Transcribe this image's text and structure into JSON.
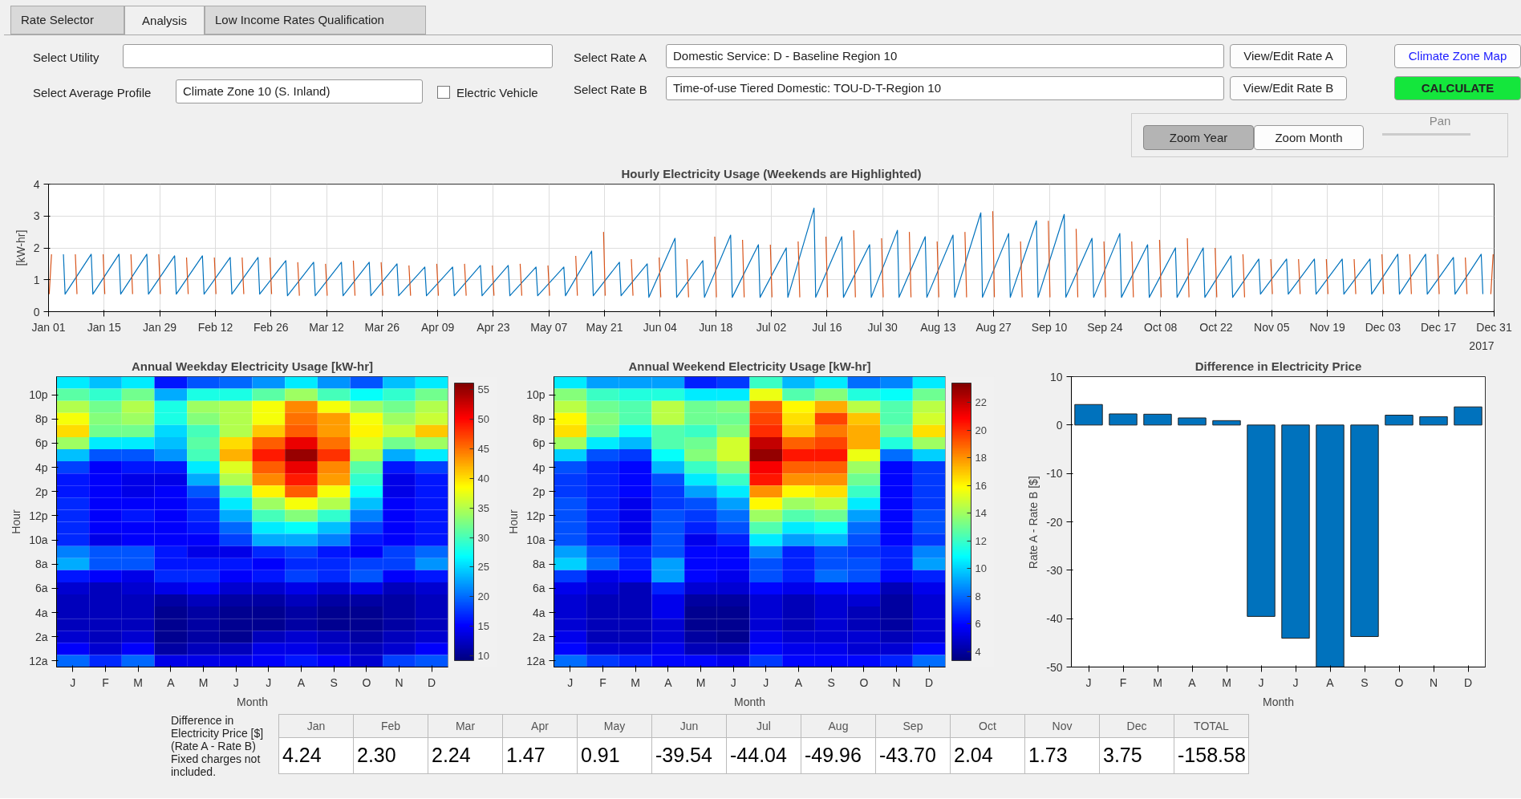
{
  "chart_data": [
    {
      "type": "other",
      "annotations": [
        "Rate Selector",
        "Analysis",
        "Low Income Rates Qualification",
        "Select Utility",
        "Select Average Profile",
        "Climate Zone 10 (S. Inland)",
        "Electric Vehicle",
        "Select Rate A",
        "Domestic Service: D - Baseline Region 10",
        "Select Rate B",
        "Time-of-use Tiered Domestic: TOU-D-T-Region 10",
        "View/Edit Rate A",
        "View/Edit Rate B",
        "Climate Zone Map",
        "CALCULATE",
        "Zoom Year",
        "Zoom Month",
        "Pan"
      ]
    },
    {
      "type": "line",
      "title": "Hourly Electricity Usage (Weekends are Highlighted)",
      "ylabel": "[kW-hr]",
      "xlim": [
        "2017-01-01",
        "2017-12-31"
      ],
      "ylim": [
        0,
        4
      ],
      "yticks": [
        0,
        1,
        2,
        3,
        4
      ],
      "grid": true,
      "xticks": [
        {
          "value": "2017-01-01",
          "label": "Jan 01"
        },
        {
          "value": "2017-01-15",
          "label": "Jan 15"
        },
        {
          "value": "2017-01-29",
          "label": "Jan 29"
        },
        {
          "value": "2017-02-12",
          "label": "Feb 12"
        },
        {
          "value": "2017-02-26",
          "label": "Feb 26"
        },
        {
          "value": "2017-03-12",
          "label": "Mar 12"
        },
        {
          "value": "2017-03-26",
          "label": "Mar 26"
        },
        {
          "value": "2017-04-09",
          "label": "Apr 09"
        },
        {
          "value": "2017-04-23",
          "label": "Apr 23"
        },
        {
          "value": "2017-05-07",
          "label": "May 07"
        },
        {
          "value": "2017-05-21",
          "label": "May 21"
        },
        {
          "value": "2017-06-04",
          "label": "Jun 04"
        },
        {
          "value": "2017-06-18",
          "label": "Jun 18"
        },
        {
          "value": "2017-07-02",
          "label": "Jul 02"
        },
        {
          "value": "2017-07-16",
          "label": "Jul 16"
        },
        {
          "value": "2017-07-30",
          "label": "Jul 30"
        },
        {
          "value": "2017-08-13",
          "label": "Aug 13"
        },
        {
          "value": "2017-08-27",
          "label": "Aug 27"
        },
        {
          "value": "2017-09-10",
          "label": "Sep 10"
        },
        {
          "value": "2017-09-24",
          "label": "Sep 24"
        },
        {
          "value": "2017-10-08",
          "label": "Oct 08"
        },
        {
          "value": "2017-10-22",
          "label": "Oct 22"
        },
        {
          "value": "2017-11-05",
          "label": "Nov 05"
        },
        {
          "value": "2017-11-19",
          "label": "Nov 19"
        },
        {
          "value": "2017-12-03",
          "label": "Dec 03"
        },
        {
          "value": "2017-12-17",
          "label": "Dec 17"
        },
        {
          "value": "2017-12-31",
          "label": "Dec 31"
        }
      ],
      "annotations": [
        "2017"
      ],
      "series": [
        {
          "color": "#0072bd",
          "x": [
            "2017-01-04T18:00",
            "2017-01-05T04:00",
            "2017-01-11T18:00",
            "2017-01-12T04:00",
            "2017-01-18T18:00",
            "2017-01-19T04:00",
            "2017-01-25T18:00",
            "2017-01-26T04:00",
            "2017-02-01T18:00",
            "2017-02-02T04:00",
            "2017-02-08T18:00",
            "2017-02-09T04:00",
            "2017-02-15T18:00",
            "2017-02-16T04:00",
            "2017-02-22T18:00",
            "2017-02-23T04:00",
            "2017-03-01T18:00",
            "2017-03-02T04:00",
            "2017-03-08T18:00",
            "2017-03-09T04:00",
            "2017-03-15T18:00",
            "2017-03-16T04:00",
            "2017-03-22T18:00",
            "2017-03-23T04:00",
            "2017-03-29T18:00",
            "2017-03-30T04:00",
            "2017-04-05T18:00",
            "2017-04-06T04:00",
            "2017-04-12T18:00",
            "2017-04-13T04:00",
            "2017-04-19T18:00",
            "2017-04-20T04:00",
            "2017-04-26T18:00",
            "2017-04-27T04:00",
            "2017-05-03T18:00",
            "2017-05-04T04:00",
            "2017-05-10T18:00",
            "2017-05-11T04:00",
            "2017-05-17T18:00",
            "2017-05-18T04:00",
            "2017-05-24T18:00",
            "2017-05-25T04:00",
            "2017-05-31T18:00",
            "2017-06-01T04:00",
            "2017-06-07T18:00",
            "2017-06-08T04:00",
            "2017-06-14T18:00",
            "2017-06-15T04:00",
            "2017-06-21T18:00",
            "2017-06-22T04:00",
            "2017-06-28T18:00",
            "2017-06-29T04:00",
            "2017-07-05T18:00",
            "2017-07-06T04:00",
            "2017-07-12T18:00",
            "2017-07-13T04:00",
            "2017-07-19T18:00",
            "2017-07-20T04:00",
            "2017-07-26T18:00",
            "2017-07-27T04:00",
            "2017-08-02T18:00",
            "2017-08-03T04:00",
            "2017-08-09T18:00",
            "2017-08-10T04:00",
            "2017-08-16T18:00",
            "2017-08-17T04:00",
            "2017-08-23T18:00",
            "2017-08-24T04:00",
            "2017-08-30T18:00",
            "2017-08-31T04:00",
            "2017-09-06T18:00",
            "2017-09-07T04:00",
            "2017-09-13T18:00",
            "2017-09-14T04:00",
            "2017-09-20T18:00",
            "2017-09-21T04:00",
            "2017-09-27T18:00",
            "2017-09-28T04:00",
            "2017-10-04T18:00",
            "2017-10-05T04:00",
            "2017-10-11T18:00",
            "2017-10-12T04:00",
            "2017-10-18T18:00",
            "2017-10-19T04:00",
            "2017-10-25T18:00",
            "2017-10-26T04:00",
            "2017-11-01T18:00",
            "2017-11-02T04:00",
            "2017-11-08T18:00",
            "2017-11-09T04:00",
            "2017-11-15T18:00",
            "2017-11-16T04:00",
            "2017-11-22T18:00",
            "2017-11-23T04:00",
            "2017-11-29T18:00",
            "2017-11-30T04:00",
            "2017-12-06T18:00",
            "2017-12-07T04:00",
            "2017-12-13T18:00",
            "2017-12-14T04:00",
            "2017-12-20T18:00",
            "2017-12-21T04:00",
            "2017-12-27T18:00",
            "2017-12-28T04:00"
          ],
          "values": [
            1.8,
            0.55,
            1.8,
            0.55,
            1.8,
            0.55,
            1.8,
            0.55,
            1.75,
            0.55,
            1.75,
            0.55,
            1.7,
            0.55,
            1.7,
            0.55,
            1.6,
            0.5,
            1.55,
            0.5,
            1.55,
            0.5,
            1.55,
            0.5,
            1.5,
            0.5,
            1.4,
            0.5,
            1.4,
            0.5,
            1.45,
            0.5,
            1.45,
            0.5,
            1.4,
            0.5,
            1.4,
            0.5,
            1.9,
            0.5,
            1.55,
            0.5,
            1.5,
            0.45,
            2.3,
            0.45,
            1.6,
            0.45,
            2.4,
            0.45,
            2.1,
            0.45,
            2.0,
            0.45,
            3.25,
            0.45,
            2.35,
            0.45,
            2.1,
            0.45,
            2.55,
            0.45,
            2.35,
            0.45,
            2.4,
            0.45,
            3.1,
            0.45,
            2.45,
            0.45,
            2.85,
            0.45,
            3.05,
            0.45,
            2.3,
            0.45,
            2.45,
            0.45,
            2.1,
            0.45,
            2.0,
            0.45,
            2.0,
            0.45,
            1.75,
            0.45,
            1.65,
            0.55,
            1.65,
            0.55,
            1.65,
            0.55,
            1.65,
            0.55,
            1.65,
            0.55,
            1.8,
            0.55,
            1.8,
            0.55,
            1.7,
            0.55,
            1.8,
            0.55
          ]
        },
        {
          "color": "#d95319",
          "x": [
            "2017-01-01T04:00",
            "2017-01-01T18:00",
            "2017-01-01T22:00",
            "2017-01-07T18:00",
            "2017-01-08T04:00",
            "2017-01-08T12:00",
            "2017-01-14T18:00",
            "2017-01-15T04:00",
            "2017-01-15T12:00",
            "2017-01-21T18:00",
            "2017-01-22T04:00",
            "2017-01-22T12:00",
            "2017-01-28T18:00",
            "2017-01-29T04:00",
            "2017-01-29T12:00",
            "2017-02-04T18:00",
            "2017-02-05T04:00",
            "2017-02-05T12:00",
            "2017-02-11T18:00",
            "2017-02-12T04:00",
            "2017-02-12T12:00",
            "2017-02-18T18:00",
            "2017-02-19T04:00",
            "2017-02-19T12:00",
            "2017-02-25T18:00",
            "2017-02-26T04:00",
            "2017-02-26T12:00",
            "2017-03-04T18:00",
            "2017-03-05T04:00",
            "2017-03-05T12:00",
            "2017-03-11T18:00",
            "2017-03-12T04:00",
            "2017-03-12T12:00",
            "2017-03-18T18:00",
            "2017-03-19T04:00",
            "2017-03-19T12:00",
            "2017-03-25T18:00",
            "2017-03-26T04:00",
            "2017-03-26T12:00",
            "2017-04-01T18:00",
            "2017-04-02T04:00",
            "2017-04-02T12:00",
            "2017-04-08T18:00",
            "2017-04-09T04:00",
            "2017-04-09T12:00",
            "2017-04-15T18:00",
            "2017-04-16T04:00",
            "2017-04-16T12:00",
            "2017-04-22T18:00",
            "2017-04-23T04:00",
            "2017-04-23T12:00",
            "2017-04-29T18:00",
            "2017-04-30T04:00",
            "2017-04-30T12:00",
            "2017-05-06T18:00",
            "2017-05-07T04:00",
            "2017-05-07T12:00",
            "2017-05-13T18:00",
            "2017-05-14T04:00",
            "2017-05-14T12:00",
            "2017-05-20T18:00",
            "2017-05-21T04:00",
            "2017-05-21T12:00",
            "2017-05-27T18:00",
            "2017-05-28T04:00",
            "2017-05-28T12:00",
            "2017-06-03T18:00",
            "2017-06-04T04:00",
            "2017-06-04T12:00",
            "2017-06-10T18:00",
            "2017-06-11T04:00",
            "2017-06-11T12:00",
            "2017-06-17T18:00",
            "2017-06-18T04:00",
            "2017-06-18T12:00",
            "2017-06-24T18:00",
            "2017-06-25T04:00",
            "2017-06-25T12:00",
            "2017-07-01T18:00",
            "2017-07-02T04:00",
            "2017-07-02T12:00",
            "2017-07-08T18:00",
            "2017-07-09T04:00",
            "2017-07-09T12:00",
            "2017-07-15T18:00",
            "2017-07-16T04:00",
            "2017-07-16T12:00",
            "2017-07-22T18:00",
            "2017-07-23T04:00",
            "2017-07-23T12:00",
            "2017-07-29T18:00",
            "2017-07-30T04:00",
            "2017-07-30T12:00",
            "2017-08-05T18:00",
            "2017-08-06T04:00",
            "2017-08-06T12:00",
            "2017-08-12T18:00",
            "2017-08-13T04:00",
            "2017-08-13T12:00",
            "2017-08-19T18:00",
            "2017-08-20T04:00",
            "2017-08-20T12:00",
            "2017-08-26T18:00",
            "2017-08-27T04:00",
            "2017-08-27T12:00",
            "2017-09-02T18:00",
            "2017-09-03T04:00",
            "2017-09-03T12:00",
            "2017-09-09T18:00",
            "2017-09-10T04:00",
            "2017-09-10T12:00",
            "2017-09-16T18:00",
            "2017-09-17T04:00",
            "2017-09-17T12:00",
            "2017-09-23T18:00",
            "2017-09-24T04:00",
            "2017-09-24T12:00",
            "2017-09-30T18:00",
            "2017-10-01T04:00",
            "2017-10-01T12:00",
            "2017-10-07T18:00",
            "2017-10-08T04:00",
            "2017-10-08T12:00",
            "2017-10-14T18:00",
            "2017-10-15T04:00",
            "2017-10-15T12:00",
            "2017-10-21T18:00",
            "2017-10-22T04:00",
            "2017-10-22T12:00",
            "2017-10-28T18:00",
            "2017-10-29T04:00",
            "2017-10-29T12:00",
            "2017-11-04T18:00",
            "2017-11-05T04:00",
            "2017-11-05T12:00",
            "2017-11-11T18:00",
            "2017-11-12T04:00",
            "2017-11-12T12:00",
            "2017-11-18T18:00",
            "2017-11-19T04:00",
            "2017-11-19T12:00",
            "2017-11-25T18:00",
            "2017-11-26T04:00",
            "2017-11-26T12:00",
            "2017-12-02T18:00",
            "2017-12-03T04:00",
            "2017-12-03T12:00",
            "2017-12-09T18:00",
            "2017-12-10T04:00",
            "2017-12-10T12:00",
            "2017-12-16T18:00",
            "2017-12-17T04:00",
            "2017-12-17T12:00",
            "2017-12-23T18:00",
            "2017-12-24T04:00",
            "2017-12-24T12:00",
            "2017-12-30T04:00",
            "2017-12-30T18:00"
          ],
          "values": [
            0.55,
            1.8,
            null,
            1.8,
            0.55,
            null,
            1.8,
            0.55,
            null,
            1.8,
            0.55,
            null,
            1.8,
            0.55,
            null,
            1.7,
            0.55,
            null,
            1.7,
            0.55,
            null,
            1.7,
            0.55,
            null,
            1.7,
            0.55,
            null,
            1.55,
            0.5,
            null,
            1.5,
            0.5,
            null,
            1.6,
            0.5,
            null,
            1.55,
            0.5,
            null,
            1.45,
            0.5,
            null,
            1.5,
            0.5,
            null,
            1.5,
            0.5,
            null,
            1.45,
            0.5,
            null,
            1.5,
            0.5,
            null,
            1.45,
            0.5,
            null,
            1.75,
            0.5,
            null,
            2.5,
            0.5,
            null,
            1.65,
            0.5,
            null,
            1.7,
            0.45,
            null,
            1.65,
            0.45,
            null,
            2.35,
            0.45,
            null,
            2.25,
            0.45,
            null,
            2.1,
            0.45,
            null,
            2.2,
            0.45,
            null,
            2.35,
            0.45,
            null,
            2.55,
            0.45,
            null,
            2.3,
            0.45,
            null,
            2.5,
            0.45,
            null,
            2.2,
            0.45,
            null,
            2.5,
            0.45,
            null,
            3.15,
            0.45,
            null,
            2.2,
            0.45,
            null,
            2.85,
            0.45,
            null,
            2.6,
            0.45,
            null,
            2.2,
            0.45,
            null,
            2.2,
            0.45,
            null,
            2.25,
            0.45,
            null,
            2.3,
            0.45,
            null,
            2.0,
            0.45,
            null,
            1.8,
            0.45,
            null,
            1.65,
            0.55,
            null,
            1.65,
            0.55,
            null,
            1.65,
            0.55,
            null,
            1.65,
            0.55,
            null,
            1.8,
            0.55,
            null,
            1.8,
            0.55,
            null,
            1.8,
            0.55,
            null,
            1.7,
            0.55,
            null,
            0.55,
            1.8
          ]
        }
      ]
    },
    {
      "type": "heatmap",
      "title": "Annual Weekday Electricity Usage [kW-hr]",
      "xlabel": "Month",
      "ylabel": "Hour",
      "clim": [
        9.2,
        56.1
      ],
      "cticks": [
        10,
        15,
        20,
        25,
        30,
        35,
        40,
        45,
        50,
        55
      ],
      "categories": [
        "J",
        "F",
        "M",
        "A",
        "M",
        "J",
        "J",
        "A",
        "S",
        "O",
        "N",
        "D"
      ],
      "y_categories": [
        null,
        "10p",
        null,
        "8p",
        null,
        "6p",
        null,
        "4p",
        null,
        "2p",
        null,
        "12p",
        null,
        "10a",
        null,
        "8a",
        null,
        "6a",
        null,
        "4a",
        null,
        "2a",
        null,
        "12a"
      ],
      "cells": [
        [
          26,
          24,
          26,
          16,
          19,
          20,
          22,
          26,
          22,
          19,
          24,
          26
        ],
        [
          31,
          29,
          32,
          23,
          28,
          28,
          31,
          34,
          30,
          27,
          29,
          32
        ],
        [
          35,
          32,
          35,
          28,
          34,
          35,
          38,
          44,
          38,
          34,
          32,
          35
        ],
        [
          38,
          33,
          34,
          28,
          33,
          35,
          38,
          45,
          43,
          38,
          34,
          36
        ],
        [
          40,
          32,
          32,
          25,
          30,
          35,
          41,
          46,
          43,
          39,
          36,
          41
        ],
        [
          34,
          26,
          26,
          24,
          31,
          40,
          46,
          51,
          45,
          37,
          32,
          34
        ],
        [
          24,
          19,
          19,
          22,
          30,
          42,
          49,
          55,
          48,
          35,
          23,
          26
        ],
        [
          18,
          15,
          16,
          16,
          26,
          37,
          46,
          51,
          44,
          31,
          16,
          18
        ],
        [
          16,
          15,
          14,
          14,
          23,
          35,
          44,
          49,
          43,
          29,
          14,
          16
        ],
        [
          16,
          15,
          14,
          15,
          19,
          30,
          39,
          46,
          38,
          27,
          14,
          16
        ],
        [
          17,
          15,
          15,
          15,
          17,
          26,
          34,
          38,
          35,
          24,
          15,
          16
        ],
        [
          17,
          15,
          16,
          15,
          17,
          23,
          30,
          33,
          29,
          21,
          15,
          16
        ],
        [
          17,
          15,
          15,
          15,
          16,
          20,
          26,
          27,
          24,
          18,
          15,
          16
        ],
        [
          17,
          14,
          15,
          15,
          15,
          18,
          23,
          23,
          21,
          16,
          15,
          16
        ],
        [
          21,
          19,
          19,
          16,
          14,
          14,
          17,
          18,
          16,
          15,
          18,
          20
        ],
        [
          23,
          19,
          19,
          16,
          16,
          16,
          15,
          17,
          17,
          18,
          18,
          22
        ],
        [
          16,
          15,
          14,
          17,
          17,
          15,
          16,
          18,
          17,
          19,
          15,
          16
        ],
        [
          13,
          12,
          13,
          14,
          15,
          13,
          13,
          14,
          13,
          14,
          12,
          13
        ],
        [
          12,
          12,
          12,
          11,
          12,
          11,
          11,
          12,
          11,
          11,
          11,
          12
        ],
        [
          12,
          12,
          12,
          10,
          11,
          10,
          10,
          11,
          10,
          10,
          11,
          12
        ],
        [
          12,
          12,
          12,
          10,
          11,
          10,
          10,
          11,
          10,
          10,
          11,
          12
        ],
        [
          13,
          12,
          13,
          10,
          11,
          10,
          12,
          13,
          12,
          11,
          12,
          13
        ],
        [
          15,
          13,
          15,
          11,
          12,
          12,
          14,
          14,
          13,
          12,
          13,
          15
        ],
        [
          20,
          17,
          20,
          14,
          14,
          14,
          15,
          16,
          15,
          13,
          18,
          19
        ]
      ]
    },
    {
      "type": "heatmap",
      "title": "Annual Weekend Electricity Usage [kW-hr]",
      "xlabel": "Month",
      "ylabel": "Hour",
      "clim": [
        3.35,
        23.4
      ],
      "cticks": [
        4,
        6,
        8,
        10,
        12,
        14,
        16,
        18,
        20,
        22
      ],
      "categories": [
        "J",
        "F",
        "M",
        "A",
        "M",
        "J",
        "J",
        "A",
        "S",
        "O",
        "N",
        "D"
      ],
      "y_categories": [
        null,
        "10p",
        null,
        "8p",
        null,
        "6p",
        null,
        "4p",
        null,
        "2p",
        null,
        "12p",
        null,
        "10a",
        null,
        "8a",
        null,
        "6a",
        null,
        "4a",
        null,
        "2a",
        null,
        "12a"
      ],
      "cells": [
        [
          10.5,
          9,
          9,
          9,
          6.5,
          7,
          12,
          9.5,
          10.5,
          8,
          8.5,
          10.5
        ],
        [
          13.5,
          12,
          11.5,
          11.5,
          10.5,
          10.5,
          15.5,
          12.5,
          13.5,
          11.5,
          11,
          13
        ],
        [
          14.5,
          13,
          12.5,
          14.5,
          13,
          13.5,
          19,
          16,
          17.5,
          14.5,
          12.5,
          14.5
        ],
        [
          16,
          13.5,
          12.5,
          14.5,
          13,
          13,
          19.5,
          16.5,
          19.5,
          17,
          12.5,
          15
        ],
        [
          16.5,
          13,
          11,
          12.5,
          12,
          13.5,
          20,
          17,
          18.5,
          17.5,
          13,
          16.5
        ],
        [
          14,
          10.5,
          9.5,
          12.5,
          13,
          15,
          22,
          19,
          19.5,
          17.5,
          11.5,
          14
        ],
        [
          10,
          7.5,
          7,
          11,
          13.5,
          15,
          23,
          20.5,
          20.5,
          15.5,
          8,
          10
        ],
        [
          7.5,
          6.5,
          6,
          9.5,
          12,
          13.5,
          21,
          19,
          19,
          14,
          6,
          7
        ],
        [
          7,
          6.5,
          6,
          7.5,
          10.5,
          12,
          20.5,
          18,
          18,
          13,
          6,
          7
        ],
        [
          7,
          6.5,
          6,
          7,
          9,
          10.5,
          18,
          16,
          16.5,
          12,
          6,
          7
        ],
        [
          7.5,
          6.5,
          5.5,
          7,
          7.5,
          9,
          16,
          14,
          14.5,
          10.5,
          6,
          7
        ],
        [
          7.5,
          6.5,
          5.5,
          7.5,
          7,
          8,
          14,
          12.5,
          13,
          9,
          6,
          7.5
        ],
        [
          7.5,
          6.5,
          5.5,
          7.5,
          6.5,
          7.5,
          12.5,
          10.5,
          11,
          8,
          6,
          7.5
        ],
        [
          7.5,
          6.5,
          5.5,
          7.5,
          5.5,
          6.5,
          10.5,
          9,
          9.5,
          7.5,
          6,
          7
        ],
        [
          9,
          7.5,
          6.5,
          7.5,
          6,
          6,
          8.5,
          6.5,
          7.5,
          7,
          6.5,
          8.5
        ],
        [
          10,
          8,
          6.5,
          9,
          6,
          6,
          7.5,
          6.5,
          7.5,
          7.5,
          6.5,
          9
        ],
        [
          7,
          5.5,
          6,
          9,
          6,
          5.5,
          7.5,
          6.5,
          8,
          7.5,
          6,
          6.5
        ],
        [
          5.5,
          5,
          4.5,
          6.5,
          5,
          5,
          6,
          5.5,
          6,
          6,
          4.5,
          5.5
        ],
        [
          5,
          4.5,
          4.5,
          5.5,
          4,
          4,
          5,
          4.5,
          5,
          5,
          4,
          5
        ],
        [
          5,
          4.5,
          4.5,
          5.5,
          3.7,
          3.7,
          5,
          4.5,
          5,
          4.5,
          4,
          5
        ],
        [
          5,
          4.5,
          4.5,
          5,
          3.7,
          3.7,
          5,
          4.5,
          5,
          4.5,
          4,
          5
        ],
        [
          5.5,
          4.5,
          4.5,
          5,
          4,
          3.7,
          5.5,
          5,
          5,
          5,
          4.5,
          5
        ],
        [
          6,
          5,
          5,
          5.5,
          4.5,
          4.5,
          6,
          5.5,
          5.5,
          5,
          5,
          6
        ],
        [
          8,
          7,
          6.5,
          6,
          6,
          5.5,
          7,
          6,
          6,
          6,
          6.5,
          8
        ]
      ]
    },
    {
      "type": "bar",
      "title": "Difference in Electricity Price",
      "xlabel": "Month",
      "ylabel": "Rate A - Rate B [$]",
      "color": "#0072bd",
      "categories": [
        "J",
        "F",
        "M",
        "A",
        "M",
        "J",
        "J",
        "A",
        "S",
        "O",
        "N",
        "D"
      ],
      "values": [
        4.24,
        2.3,
        2.24,
        1.47,
        0.91,
        -39.54,
        -44.04,
        -49.96,
        -43.7,
        2.04,
        1.73,
        3.75
      ],
      "ylim": [
        -50,
        10
      ],
      "yticks": [
        -50,
        -40,
        -30,
        -20,
        -10,
        0,
        10
      ]
    },
    {
      "type": "other",
      "annotations": [
        "Difference in Electricity Price [$] (Rate A - Rate B) Fixed charges not included."
      ],
      "categories": [
        "Jan",
        "Feb",
        "Mar",
        "Apr",
        "May",
        "Jun",
        "Jul",
        "Aug",
        "Sep",
        "Oct",
        "Nov",
        "Dec",
        "TOTAL"
      ],
      "value_labels": [
        "4.24",
        "2.30",
        "2.24",
        "1.47",
        "0.91",
        "-39.54",
        "-44.04",
        "-49.96",
        "-43.70",
        "2.04",
        "1.73",
        "3.75",
        "-158.58"
      ]
    }
  ]
}
